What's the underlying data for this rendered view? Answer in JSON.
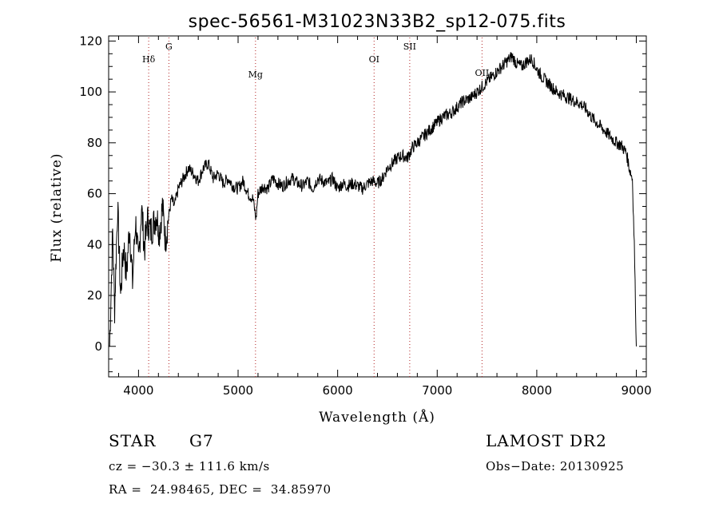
{
  "chart_data": {
    "type": "line",
    "title": "spec-56561-M31023N33B2_sp12-075.fits",
    "xlabel": "Wavelength (Å)",
    "ylabel": "Flux (relative)",
    "xlim": [
      3700,
      9100
    ],
    "ylim": [
      -12,
      122
    ],
    "xticks": [
      4000,
      5000,
      6000,
      7000,
      8000,
      9000
    ],
    "yticks": [
      0,
      20,
      40,
      60,
      80,
      100,
      120
    ],
    "grid": false,
    "line_color": "#000000",
    "marker_color": "#b22222",
    "lines": [
      {
        "label": "Hδ",
        "x": 4102
      },
      {
        "label": "G",
        "x": 4305
      },
      {
        "label": "Mg",
        "x": 5175
      },
      {
        "label": "OI",
        "x": 6366
      },
      {
        "label": "SII",
        "x": 6724
      },
      {
        "label": "OII",
        "x": 7450
      }
    ],
    "series": [
      {
        "x": [
          3710,
          3740,
          3760,
          3790,
          3820,
          3850,
          3880,
          3910,
          3940,
          3970,
          4000,
          4030,
          4060,
          4090,
          4120,
          4150,
          4180,
          4210,
          4240,
          4270,
          4300,
          4330,
          4360,
          4400,
          4450,
          4500,
          4550,
          4600,
          4650,
          4700,
          4750,
          4800,
          4850,
          4900,
          4950,
          5000,
          5050,
          5100,
          5150,
          5180,
          5200,
          5250,
          5300,
          5350,
          5400,
          5450,
          5500,
          5550,
          5600,
          5650,
          5700,
          5750,
          5800,
          5850,
          5900,
          5950,
          6000,
          6050,
          6100,
          6150,
          6200,
          6250,
          6300,
          6350,
          6400,
          6450,
          6500,
          6550,
          6600,
          6650,
          6700,
          6750,
          6800,
          6850,
          6900,
          6950,
          7000,
          7050,
          7100,
          7150,
          7200,
          7250,
          7300,
          7350,
          7400,
          7450,
          7500,
          7550,
          7600,
          7650,
          7700,
          7750,
          7800,
          7850,
          7900,
          7950,
          8000,
          8050,
          8100,
          8150,
          8200,
          8250,
          8300,
          8350,
          8400,
          8450,
          8500,
          8550,
          8600,
          8650,
          8700,
          8750,
          8800,
          8850,
          8900,
          8930,
          8960,
          8980,
          9000
        ],
        "y": [
          0,
          45,
          15,
          55,
          20,
          40,
          28,
          48,
          25,
          50,
          32,
          55,
          38,
          50,
          45,
          48,
          52,
          45,
          55,
          42,
          50,
          58,
          55,
          62,
          66,
          70,
          68,
          65,
          70,
          72,
          66,
          68,
          64,
          66,
          63,
          62,
          65,
          60,
          58,
          50,
          60,
          63,
          62,
          66,
          64,
          63,
          65,
          66,
          64,
          63,
          65,
          62,
          66,
          65,
          64,
          66,
          62,
          64,
          63,
          64,
          63,
          62,
          64,
          65,
          64,
          66,
          70,
          72,
          74,
          75,
          74,
          78,
          80,
          82,
          84,
          86,
          88,
          90,
          91,
          92,
          94,
          96,
          97,
          98,
          100,
          102,
          104,
          106,
          108,
          110,
          112,
          114,
          111,
          110,
          112,
          113,
          109,
          106,
          104,
          102,
          100,
          99,
          98,
          97,
          96,
          95,
          93,
          90,
          88,
          86,
          84,
          82,
          80,
          79,
          76,
          70,
          66,
          40,
          0
        ]
      }
    ],
    "info": {
      "class_label": "STAR",
      "subclass": "G7",
      "survey": "LAMOST DR2",
      "cz": "cz = −30.3 ± 111.6 km/s",
      "obs_date": "Obs−Date: 20130925",
      "coords": "RA =  24.98465, DEC =  34.85970"
    }
  }
}
